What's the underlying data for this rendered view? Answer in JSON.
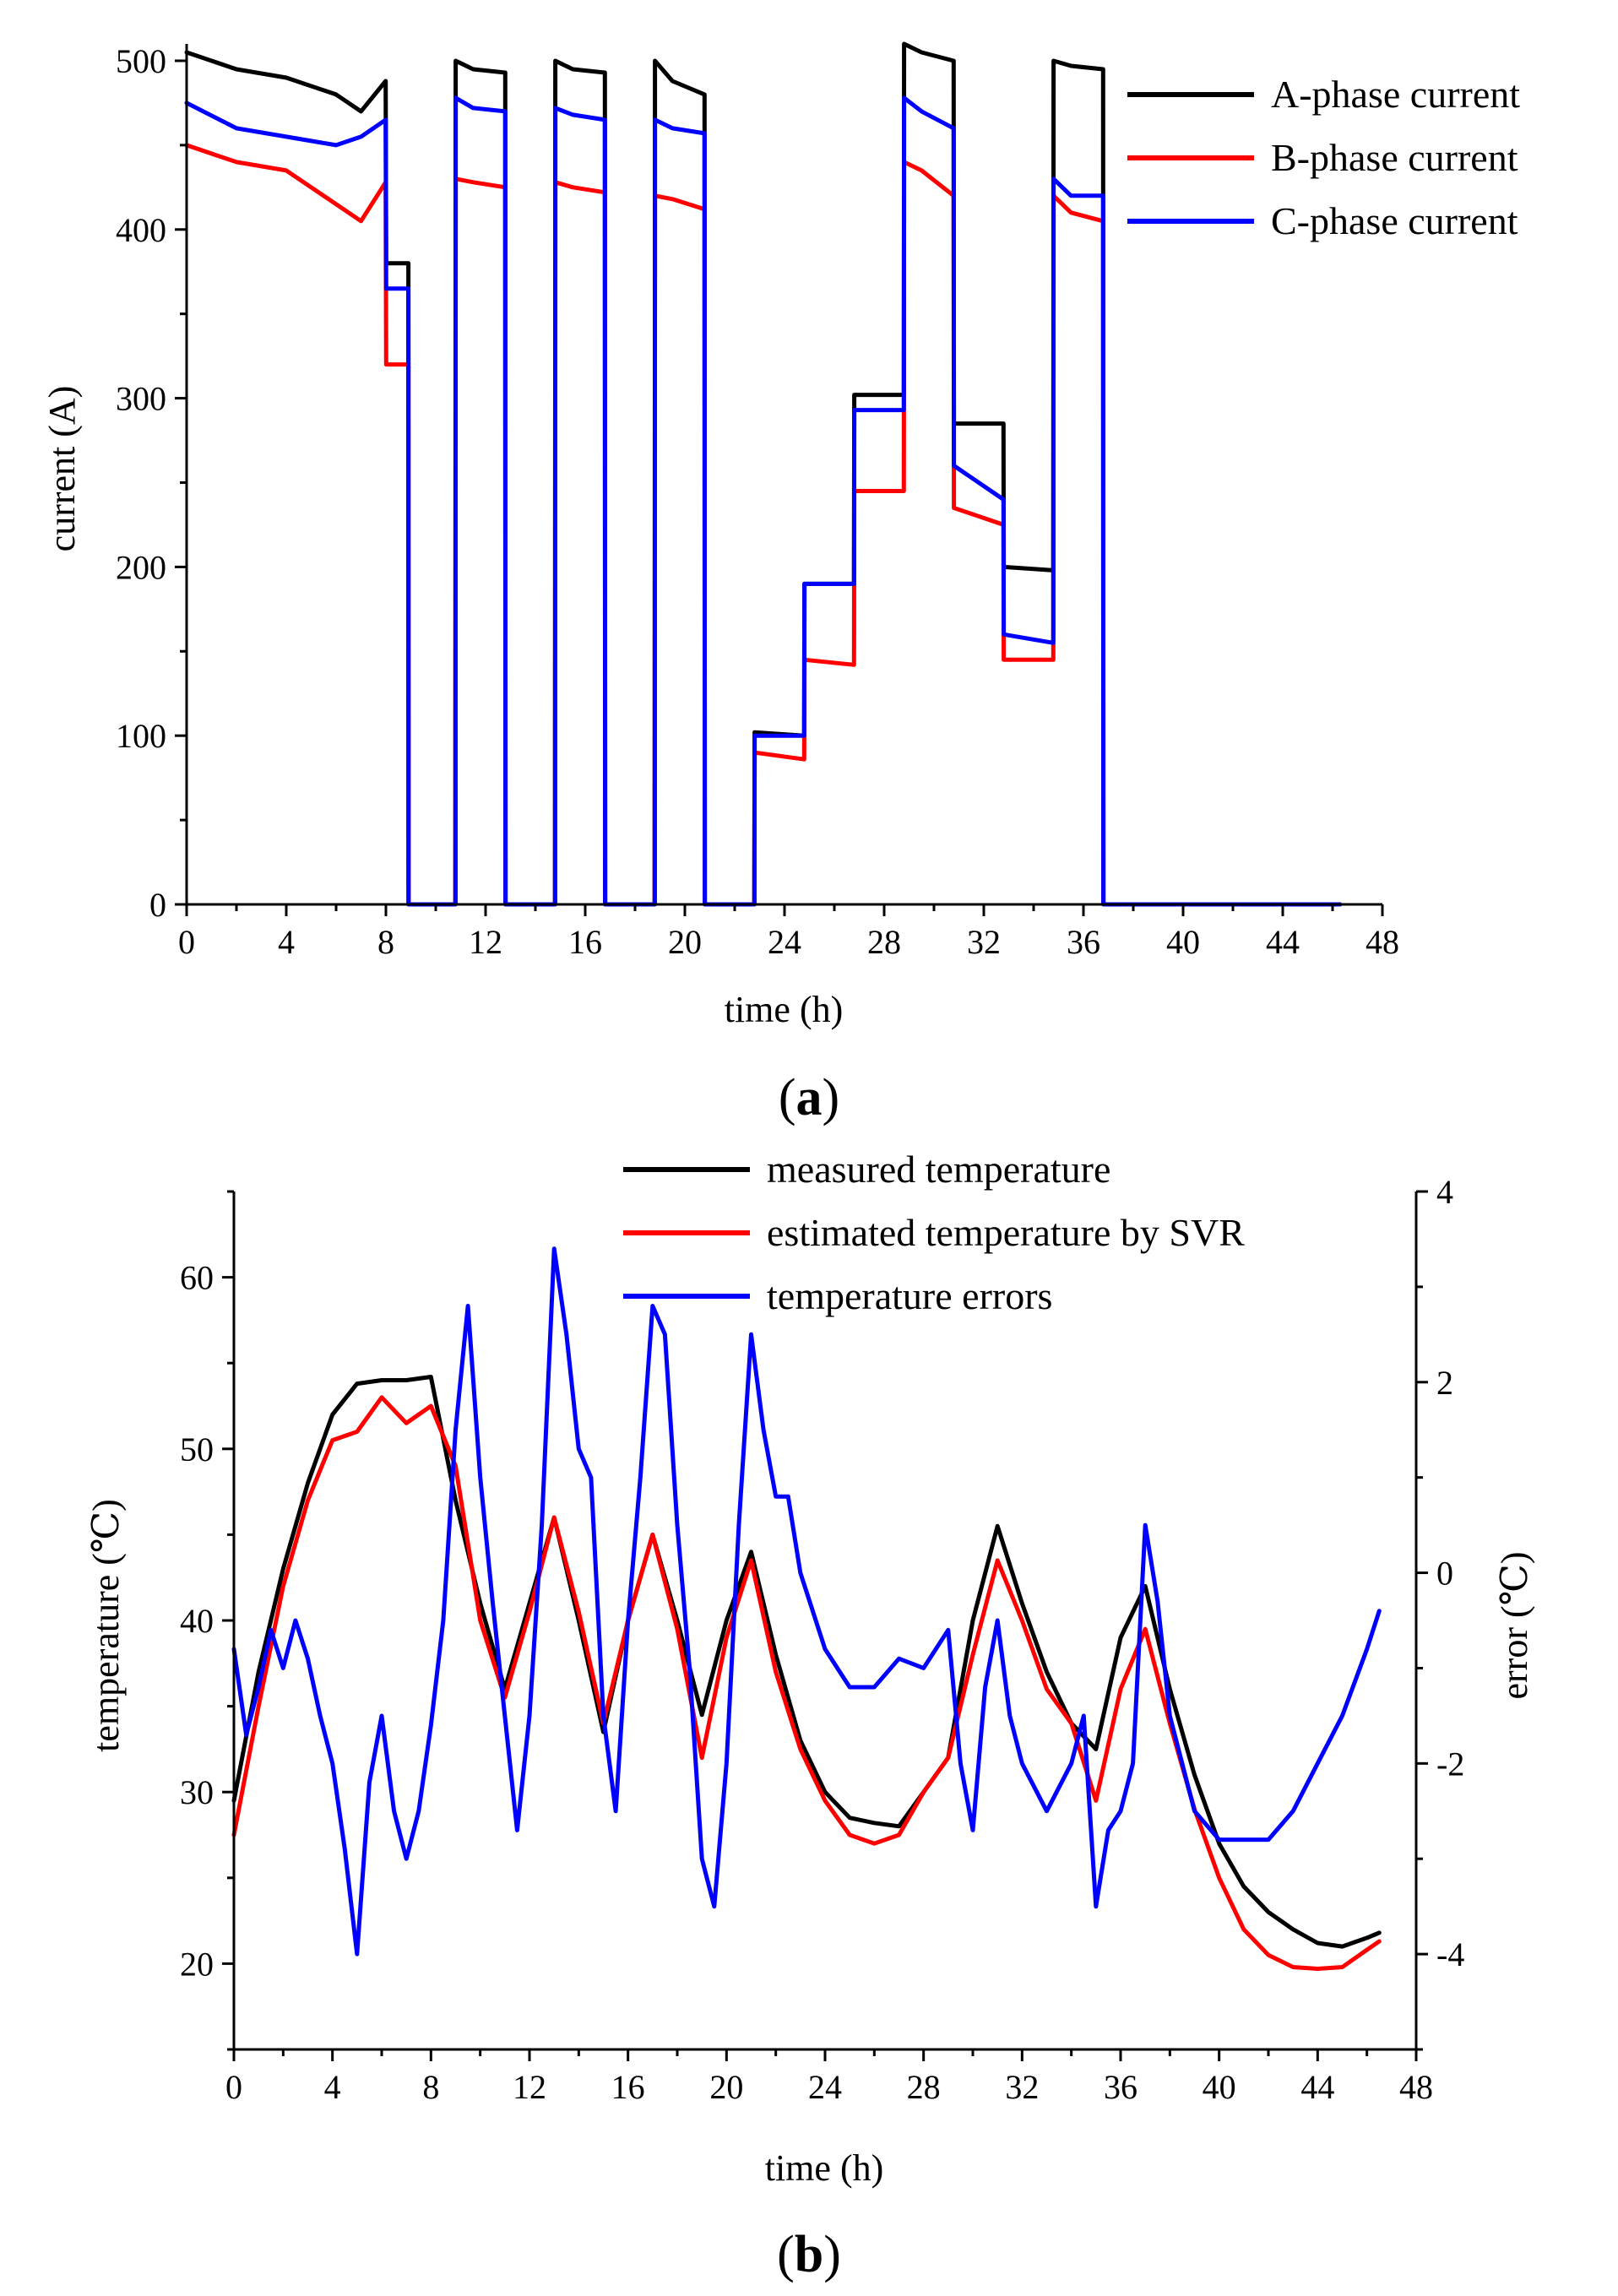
{
  "chart_data": [
    {
      "id": "a",
      "type": "line",
      "panel_label": "a",
      "xlabel": "time (h)",
      "ylabel": "current (A)",
      "xlim": [
        0,
        48
      ],
      "ylim": [
        0,
        510
      ],
      "x_ticks": [
        0,
        4,
        8,
        12,
        16,
        20,
        24,
        28,
        32,
        36,
        40,
        44,
        48
      ],
      "y_ticks": [
        0,
        100,
        200,
        300,
        400,
        500
      ],
      "legend_position": "top-right",
      "series": [
        {
          "name": "A-phase current",
          "color": "#000000",
          "x": [
            0,
            2,
            4,
            6,
            7,
            7.99,
            8.01,
            8.9,
            8.91,
            10.79,
            10.8,
            11.5,
            12.79,
            12.8,
            14.79,
            14.8,
            15.5,
            16.79,
            16.8,
            18.79,
            18.8,
            19.5,
            20.79,
            20.8,
            22.79,
            22.8,
            24.79,
            24.8,
            26.79,
            26.8,
            28.79,
            28.8,
            29.5,
            30.79,
            30.8,
            32.79,
            32.8,
            34.79,
            34.8,
            35.5,
            36.79,
            36.8,
            46.3
          ],
          "values": [
            505,
            495,
            490,
            480,
            470,
            488,
            380,
            380,
            0,
            0,
            500,
            495,
            493,
            0,
            0,
            500,
            495,
            493,
            0,
            0,
            500,
            488,
            480,
            0,
            0,
            102,
            100,
            190,
            190,
            302,
            302,
            510,
            505,
            500,
            285,
            285,
            200,
            198,
            500,
            497,
            495,
            0,
            0
          ]
        },
        {
          "name": "B-phase current",
          "color": "#ff0000",
          "x": [
            0,
            2,
            4,
            6,
            7,
            7.99,
            8.01,
            8.9,
            8.91,
            10.79,
            10.8,
            11.5,
            12.79,
            12.8,
            14.79,
            14.8,
            15.5,
            16.79,
            16.8,
            18.79,
            18.8,
            19.5,
            20.79,
            20.8,
            22.79,
            22.8,
            24.79,
            24.8,
            26.79,
            26.8,
            28.79,
            28.8,
            29.5,
            30.79,
            30.8,
            32.79,
            32.8,
            34.79,
            34.8,
            35.5,
            36.79,
            36.8,
            46.3
          ],
          "values": [
            450,
            440,
            435,
            415,
            405,
            428,
            320,
            320,
            0,
            0,
            430,
            428,
            425,
            0,
            0,
            428,
            425,
            422,
            0,
            0,
            420,
            418,
            412,
            0,
            0,
            90,
            86,
            145,
            142,
            245,
            245,
            440,
            435,
            420,
            235,
            225,
            145,
            145,
            420,
            410,
            405,
            0,
            0
          ]
        },
        {
          "name": "C-phase current",
          "color": "#0000ff",
          "x": [
            0,
            2,
            4,
            6,
            7,
            7.99,
            8.01,
            8.9,
            8.91,
            10.79,
            10.8,
            11.5,
            12.79,
            12.8,
            14.79,
            14.8,
            15.5,
            16.79,
            16.8,
            18.79,
            18.8,
            19.5,
            20.79,
            20.8,
            22.79,
            22.8,
            24.79,
            24.8,
            26.79,
            26.8,
            28.79,
            28.8,
            29.5,
            30.79,
            30.8,
            32.79,
            32.8,
            34.79,
            34.8,
            35.5,
            36.79,
            36.8,
            46.3
          ],
          "values": [
            475,
            460,
            455,
            450,
            455,
            465,
            365,
            365,
            0,
            0,
            478,
            472,
            470,
            0,
            0,
            472,
            468,
            465,
            0,
            0,
            465,
            460,
            457,
            0,
            0,
            100,
            100,
            190,
            190,
            293,
            293,
            478,
            470,
            460,
            260,
            240,
            160,
            155,
            430,
            420,
            420,
            0,
            0
          ]
        }
      ]
    },
    {
      "id": "b",
      "type": "line",
      "panel_label": "b",
      "xlabel": "time (h)",
      "ylabel": "temperature (℃)",
      "y2label": "error (℃)",
      "xlim": [
        0,
        48
      ],
      "ylim": [
        15,
        65
      ],
      "y2lim": [
        -5,
        4
      ],
      "x_ticks": [
        0,
        4,
        8,
        12,
        16,
        20,
        24,
        28,
        32,
        36,
        40,
        44,
        48
      ],
      "y_ticks": [
        20,
        30,
        40,
        50,
        60
      ],
      "y2_ticks": [
        -4,
        -2,
        0,
        2,
        4
      ],
      "legend_position": "top-center",
      "series": [
        {
          "name": "measured temperature",
          "color": "#000000",
          "axis": "left",
          "x": [
            0,
            1,
            2,
            3,
            4,
            5,
            6,
            7,
            8,
            9,
            10,
            11,
            12,
            13,
            14,
            15,
            16,
            17,
            18,
            19,
            20,
            21,
            22,
            23,
            24,
            25,
            26,
            27,
            28,
            29,
            30,
            31,
            32,
            33,
            34,
            35,
            36,
            37,
            38,
            39,
            40,
            41,
            42,
            43,
            44,
            45,
            46,
            46.5
          ],
          "values": [
            29.5,
            37,
            43,
            48,
            52,
            53.8,
            54,
            54,
            54.2,
            47,
            41,
            36,
            41,
            46,
            40,
            33.5,
            40,
            45,
            40,
            34.5,
            40,
            44,
            38,
            33,
            30,
            28.5,
            28.2,
            28,
            30,
            32,
            40,
            45.5,
            41,
            37,
            34,
            32.5,
            39,
            42,
            36,
            31,
            27,
            24.5,
            23,
            22,
            21.2,
            21,
            21.5,
            21.8
          ]
        },
        {
          "name": "estimated temperature by SVR",
          "color": "#ff0000",
          "axis": "left",
          "x": [
            0,
            1,
            2,
            3,
            4,
            5,
            6,
            7,
            8,
            9,
            10,
            11,
            12,
            13,
            14,
            15,
            16,
            17,
            18,
            19,
            20,
            21,
            22,
            23,
            24,
            25,
            26,
            27,
            28,
            29,
            30,
            31,
            32,
            33,
            34,
            35,
            36,
            37,
            38,
            39,
            40,
            41,
            42,
            43,
            44,
            45,
            46,
            46.5
          ],
          "values": [
            27.5,
            35,
            42,
            47,
            50.5,
            51,
            53,
            51.5,
            52.5,
            49,
            40,
            35.5,
            40.5,
            46,
            40.5,
            34,
            40,
            45,
            39.5,
            32,
            39,
            43.5,
            37,
            32.5,
            29.5,
            27.5,
            27,
            27.5,
            30,
            32,
            38,
            43.5,
            40,
            36,
            34,
            29.5,
            36,
            39.5,
            34,
            29,
            25,
            22,
            20.5,
            19.8,
            19.7,
            19.8,
            20.8,
            21.3
          ]
        },
        {
          "name": "temperature errors",
          "color": "#0000ff",
          "axis": "right",
          "x": [
            0,
            0.5,
            1,
            1.5,
            2,
            2.5,
            3,
            3.5,
            4,
            4.5,
            5,
            5.5,
            6,
            6.5,
            7,
            7.5,
            8,
            8.5,
            9,
            9.5,
            10,
            10.5,
            11,
            11.5,
            12,
            12.5,
            13,
            13.5,
            14,
            14.5,
            15,
            15.5,
            16,
            16.5,
            17,
            17.5,
            18,
            18.5,
            19,
            19.5,
            20,
            20.5,
            21,
            21.5,
            22,
            22.5,
            23,
            24,
            25,
            26,
            27,
            28,
            29,
            29.5,
            30,
            30.5,
            31,
            31.5,
            32,
            33,
            34,
            34.5,
            35,
            35.5,
            36,
            36.5,
            37,
            37.5,
            38,
            39,
            40,
            41,
            42,
            43,
            44,
            45,
            46,
            46.5
          ],
          "values": [
            -0.8,
            -1.7,
            -1.2,
            -0.6,
            -1.0,
            -0.5,
            -0.9,
            -1.5,
            -2.0,
            -2.9,
            -4.0,
            -2.2,
            -1.5,
            -2.5,
            -3.0,
            -2.5,
            -1.6,
            -0.5,
            1.5,
            2.8,
            1.0,
            -0.3,
            -1.5,
            -2.7,
            -1.5,
            0.5,
            3.4,
            2.5,
            1.3,
            1.0,
            -1.5,
            -2.5,
            -0.5,
            1.0,
            2.8,
            2.5,
            0.5,
            -1.0,
            -3.0,
            -3.5,
            -2.0,
            0.5,
            2.5,
            1.5,
            0.8,
            0.8,
            0.0,
            -0.8,
            -1.2,
            -1.2,
            -0.9,
            -1.0,
            -0.6,
            -2.0,
            -2.7,
            -1.2,
            -0.5,
            -1.5,
            -2.0,
            -2.5,
            -2.0,
            -1.5,
            -3.5,
            -2.7,
            -2.5,
            -2.0,
            0.5,
            -0.3,
            -1.5,
            -2.5,
            -2.8,
            -2.8,
            -2.8,
            -2.5,
            -2.0,
            -1.5,
            -0.8,
            -0.4
          ]
        }
      ]
    }
  ]
}
